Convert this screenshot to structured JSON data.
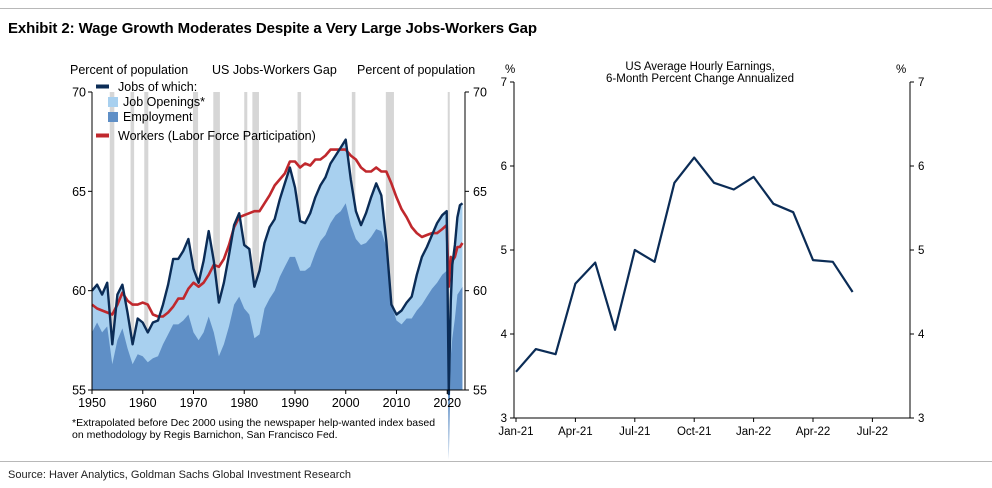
{
  "title": "Exhibit 2: Wage Growth Moderates Despite a Very Large Jobs-Workers Gap",
  "source": "Source: Haver Analytics, Goldman Sachs Global Investment Research",
  "chart_data": [
    {
      "type": "area",
      "title": "US Jobs-Workers Gap",
      "left_axis_label": "Percent of population",
      "right_axis_label": "Percent of population",
      "xlim": [
        1950,
        2023.5
      ],
      "ylim": [
        55,
        70
      ],
      "x_ticks": [
        "1950",
        "1960",
        "1970",
        "1980",
        "1990",
        "2000",
        "2010",
        "2020"
      ],
      "y_ticks": [
        "55",
        "60",
        "65",
        "70"
      ],
      "legend": {
        "header": "Jobs of which:",
        "job_openings": "Job Openings*",
        "employment": "Employment",
        "workers": "Workers (Labor Force Participation)"
      },
      "footnote_line1": "*Extrapolated before Dec 2000 using the newspaper help-wanted index based",
      "footnote_line2": "on methodology by Regis Barnichon, San Francisco Fed.",
      "recessions": [
        [
          1953.5,
          1954.4
        ],
        [
          1957.6,
          1958.3
        ],
        [
          1960.3,
          1961.1
        ],
        [
          1969.9,
          1970.9
        ],
        [
          1973.9,
          1975.2
        ],
        [
          1980.0,
          1980.6
        ],
        [
          1981.6,
          1982.9
        ],
        [
          1990.5,
          1991.2
        ],
        [
          2001.2,
          2001.9
        ],
        [
          2007.9,
          2009.5
        ],
        [
          2020.1,
          2020.4
        ]
      ],
      "series": [
        {
          "name": "Jobs",
          "x": [
            1950,
            1951,
            1952,
            1953,
            1954,
            1955,
            1956,
            1957,
            1958,
            1959,
            1960,
            1961,
            1962,
            1963,
            1964,
            1965,
            1966,
            1967,
            1968,
            1969,
            1970,
            1971,
            1972,
            1973,
            1974,
            1975,
            1976,
            1977,
            1978,
            1979,
            1980,
            1981,
            1982,
            1983,
            1984,
            1985,
            1986,
            1987,
            1988,
            1989,
            1990,
            1991,
            1992,
            1993,
            1994,
            1995,
            1996,
            1997,
            1998,
            1999,
            2000,
            2001,
            2002,
            2003,
            2004,
            2005,
            2006,
            2007,
            2008,
            2009,
            2010,
            2011,
            2012,
            2013,
            2014,
            2015,
            2016,
            2017,
            2018,
            2019,
            2019.9,
            2020.3,
            2020.7,
            2021,
            2021.5,
            2022,
            2022.5,
            2023
          ],
          "values": [
            60.0,
            60.3,
            59.8,
            60.4,
            57.3,
            59.8,
            60.3,
            58.9,
            57.3,
            58.6,
            58.4,
            57.9,
            58.4,
            58.5,
            59.3,
            60.3,
            61.6,
            61.6,
            62.0,
            62.6,
            61.1,
            60.4,
            61.5,
            63.0,
            61.5,
            59.4,
            60.4,
            61.8,
            63.3,
            63.9,
            62.3,
            62.1,
            60.2,
            61.0,
            62.4,
            63.2,
            63.6,
            64.6,
            65.4,
            66.2,
            65.2,
            63.5,
            63.4,
            63.9,
            64.7,
            65.3,
            65.7,
            66.4,
            66.8,
            67.2,
            67.6,
            65.6,
            64.0,
            63.3,
            63.9,
            64.7,
            65.4,
            64.8,
            62.5,
            59.3,
            58.8,
            59.0,
            59.4,
            59.7,
            60.8,
            61.7,
            62.2,
            62.8,
            63.4,
            63.8,
            64.0,
            54.8,
            59.5,
            61.3,
            62.3,
            63.7,
            64.3,
            64.4
          ]
        },
        {
          "name": "Employment",
          "x": [
            1950,
            1951,
            1952,
            1953,
            1954,
            1955,
            1956,
            1957,
            1958,
            1959,
            1960,
            1961,
            1962,
            1963,
            1964,
            1965,
            1966,
            1967,
            1968,
            1969,
            1970,
            1971,
            1972,
            1973,
            1974,
            1975,
            1976,
            1977,
            1978,
            1979,
            1980,
            1981,
            1982,
            1983,
            1984,
            1985,
            1986,
            1987,
            1988,
            1989,
            1990,
            1991,
            1992,
            1993,
            1994,
            1995,
            1996,
            1997,
            1998,
            1999,
            2000,
            2001,
            2002,
            2003,
            2004,
            2005,
            2006,
            2007,
            2008,
            2009,
            2010,
            2011,
            2012,
            2013,
            2014,
            2015,
            2016,
            2017,
            2018,
            2019,
            2019.9,
            2020.3,
            2020.7,
            2021,
            2021.5,
            2022,
            2022.5,
            2023
          ],
          "values": [
            57.9,
            58.4,
            57.9,
            58.2,
            56.3,
            57.5,
            58.1,
            57.1,
            56.3,
            56.8,
            56.7,
            56.4,
            56.6,
            56.7,
            57.3,
            57.8,
            58.3,
            58.3,
            58.5,
            58.8,
            57.9,
            57.5,
            57.9,
            58.7,
            57.9,
            56.7,
            57.3,
            58.2,
            59.3,
            59.7,
            59.1,
            58.8,
            57.6,
            57.8,
            59.1,
            59.6,
            60.0,
            60.7,
            61.2,
            61.7,
            61.7,
            61.0,
            61.0,
            61.2,
            61.9,
            62.5,
            62.8,
            63.4,
            63.8,
            64.0,
            64.4,
            63.3,
            62.6,
            62.3,
            62.4,
            62.7,
            63.1,
            63.0,
            62.2,
            59.3,
            58.5,
            58.3,
            58.6,
            58.6,
            59.0,
            59.3,
            59.7,
            60.1,
            60.4,
            60.8,
            61.0,
            51.5,
            56.7,
            57.6,
            58.6,
            59.8,
            60.0,
            60.2
          ]
        },
        {
          "name": "Workers",
          "x": [
            1950,
            1951,
            1952,
            1953,
            1954,
            1955,
            1956,
            1957,
            1958,
            1959,
            1960,
            1961,
            1962,
            1963,
            1964,
            1965,
            1966,
            1967,
            1968,
            1969,
            1970,
            1971,
            1972,
            1973,
            1974,
            1975,
            1976,
            1977,
            1978,
            1979,
            1980,
            1981,
            1982,
            1983,
            1984,
            1985,
            1986,
            1987,
            1988,
            1989,
            1990,
            1991,
            1992,
            1993,
            1994,
            1995,
            1996,
            1997,
            1998,
            1999,
            2000,
            2001,
            2002,
            2003,
            2004,
            2005,
            2006,
            2007,
            2008,
            2009,
            2010,
            2011,
            2012,
            2013,
            2014,
            2015,
            2016,
            2017,
            2018,
            2019,
            2019.9,
            2020.3,
            2020.7,
            2021,
            2021.5,
            2022,
            2022.5,
            2023
          ],
          "values": [
            59.3,
            59.1,
            59.0,
            58.9,
            58.8,
            59.3,
            59.9,
            59.5,
            59.3,
            59.3,
            59.4,
            59.3,
            58.8,
            58.7,
            58.7,
            58.9,
            59.2,
            59.6,
            59.6,
            60.1,
            60.4,
            60.2,
            60.4,
            60.8,
            61.3,
            61.2,
            61.6,
            62.3,
            63.2,
            63.7,
            63.8,
            63.9,
            64.0,
            64.0,
            64.4,
            64.8,
            65.3,
            65.6,
            65.9,
            66.5,
            66.5,
            66.2,
            66.4,
            66.3,
            66.6,
            66.6,
            66.8,
            67.1,
            67.1,
            67.1,
            67.1,
            66.8,
            66.6,
            66.2,
            66.0,
            66.0,
            66.2,
            66.0,
            66.0,
            65.4,
            64.7,
            64.1,
            63.7,
            63.2,
            62.9,
            62.7,
            62.8,
            62.9,
            62.9,
            63.1,
            63.3,
            60.2,
            61.7,
            61.5,
            61.7,
            62.2,
            62.2,
            62.4
          ]
        }
      ]
    },
    {
      "type": "line",
      "title_line1": "US Average Hourly Earnings,",
      "title_line2": "6-Month Percent Change Annualized",
      "left_axis_label": "%",
      "right_axis_label": "%",
      "ylim": [
        3,
        7
      ],
      "y_ticks": [
        "3",
        "4",
        "5",
        "6",
        "7"
      ],
      "x_ticks": [
        "Jan-21",
        "Apr-21",
        "Jul-21",
        "Oct-21",
        "Jan-22",
        "Apr-22",
        "Jul-22"
      ],
      "series": [
        {
          "name": "US Average Hourly Earnings, 6-Month Percent Change Annualized",
          "x": [
            "Jan-21",
            "Feb-21",
            "Mar-21",
            "Apr-21",
            "May-21",
            "Jun-21",
            "Jul-21",
            "Aug-21",
            "Sep-21",
            "Oct-21",
            "Nov-21",
            "Dec-21",
            "Jan-22",
            "Feb-22",
            "Mar-22",
            "Apr-22",
            "May-22",
            "Jun-22"
          ],
          "values": [
            3.55,
            3.82,
            3.76,
            4.6,
            4.85,
            4.05,
            5.0,
            4.86,
            5.8,
            6.1,
            5.8,
            5.72,
            5.87,
            5.55,
            5.45,
            4.88,
            4.86,
            4.5
          ]
        }
      ]
    }
  ]
}
